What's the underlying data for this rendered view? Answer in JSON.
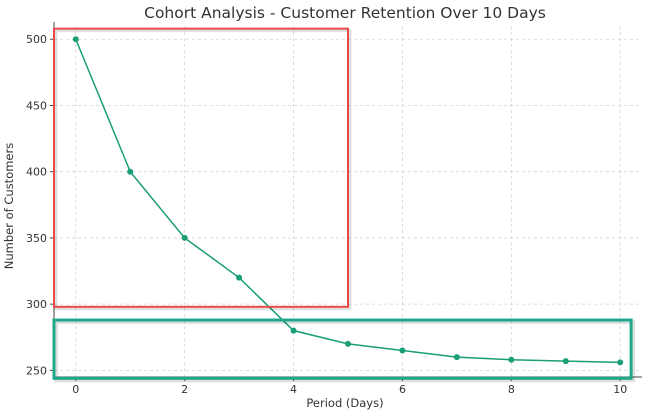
{
  "chart_data": {
    "type": "line",
    "title": "Cohort Analysis - Customer Retention Over 10 Days",
    "xlabel": "Period (Days)",
    "ylabel": "Number of Customers",
    "xlim": [
      -0.4,
      10.4
    ],
    "ylim": [
      245,
      510
    ],
    "xticks": [
      0,
      2,
      4,
      6,
      8,
      10
    ],
    "yticks": [
      250,
      300,
      350,
      400,
      450,
      500
    ],
    "grid": true,
    "series": [
      {
        "x": [
          0,
          1,
          2,
          3,
          4,
          5,
          6,
          7,
          8,
          9,
          10
        ],
        "values": [
          500,
          400,
          350,
          320,
          280,
          270,
          265,
          260,
          258,
          257,
          256
        ],
        "color": "#1a9e77"
      }
    ],
    "annotations": [
      {
        "shape": "rectangle",
        "x_range": [
          -0.4,
          5.0
        ],
        "y_range": [
          298,
          508
        ],
        "color": "#e84a4a"
      },
      {
        "shape": "rectangle",
        "x_range": [
          -0.4,
          10.2
        ],
        "y_range": [
          244,
          288
        ],
        "color": "#1fa98a"
      }
    ]
  }
}
